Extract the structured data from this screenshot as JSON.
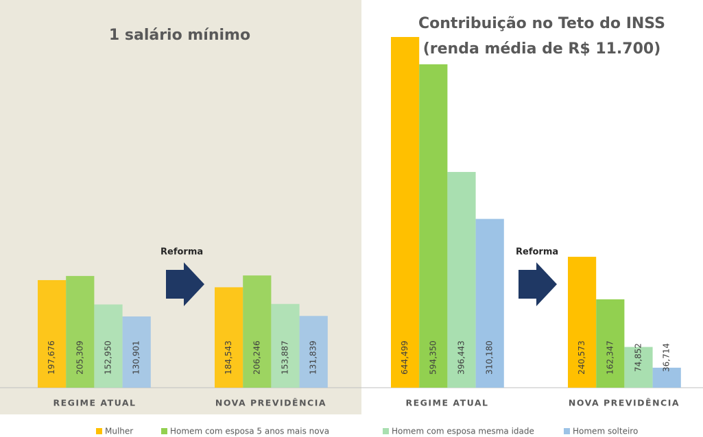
{
  "chart_data": {
    "type": "bar",
    "panels": [
      {
        "title": [
          "1 salário mínimo"
        ],
        "annotation": "Reforma"
      },
      {
        "title": [
          "Contribuição no Teto do INSS",
          "(renda média de R$ 11.700)"
        ],
        "annotation": "Reforma"
      }
    ],
    "categories": [
      "REGIME ATUAL",
      "NOVA PREVIDÊNCIA",
      "REGIME ATUAL",
      "NOVA PREVIDÊNCIA"
    ],
    "series": [
      {
        "name": "Mulher",
        "color": "#ffc000",
        "values": [
          197.676,
          184.543,
          644.499,
          240.573
        ],
        "value_labels": [
          "197,676",
          "184,543",
          "644,499",
          "240,573"
        ]
      },
      {
        "name": "Homem com esposa 5 anos mais nova",
        "color": "#92d050",
        "values": [
          205.309,
          206.246,
          594.35,
          162.347
        ],
        "value_labels": [
          "205,309",
          "206,246",
          "594,350",
          "162,347"
        ]
      },
      {
        "name": "Homem com esposa mesma idade",
        "color": "#a9dfb0",
        "values": [
          152.95,
          153.887,
          396.443,
          74.852
        ],
        "value_labels": [
          "152,950",
          "153,887",
          "396,443",
          "74,852"
        ]
      },
      {
        "name": "Homem solteiro",
        "color": "#9dc3e6",
        "values": [
          130.901,
          131.839,
          310.18,
          36.714
        ],
        "value_labels": [
          "130,901",
          "131,839",
          "310,180",
          "36,714"
        ]
      }
    ]
  }
}
